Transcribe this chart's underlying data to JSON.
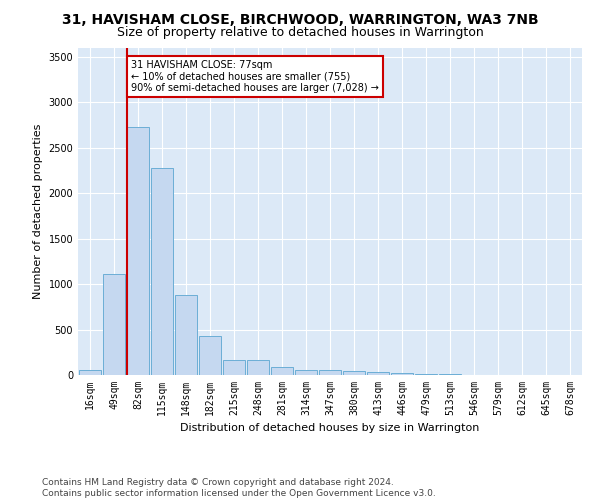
{
  "title": "31, HAVISHAM CLOSE, BIRCHWOOD, WARRINGTON, WA3 7NB",
  "subtitle": "Size of property relative to detached houses in Warrington",
  "xlabel": "Distribution of detached houses by size in Warrington",
  "ylabel": "Number of detached properties",
  "categories": [
    "16sqm",
    "49sqm",
    "82sqm",
    "115sqm",
    "148sqm",
    "182sqm",
    "215sqm",
    "248sqm",
    "281sqm",
    "314sqm",
    "347sqm",
    "380sqm",
    "413sqm",
    "446sqm",
    "479sqm",
    "513sqm",
    "546sqm",
    "579sqm",
    "612sqm",
    "645sqm",
    "678sqm"
  ],
  "values": [
    55,
    1110,
    2730,
    2280,
    880,
    430,
    170,
    160,
    90,
    60,
    50,
    40,
    28,
    18,
    12,
    8,
    5,
    3,
    2,
    1,
    1
  ],
  "bar_color": "#c5d8f0",
  "bar_edge_color": "#6baed6",
  "annotation_text_line1": "31 HAVISHAM CLOSE: 77sqm",
  "annotation_text_line2": "← 10% of detached houses are smaller (755)",
  "annotation_text_line3": "90% of semi-detached houses are larger (7,028) →",
  "red_line_color": "#cc0000",
  "annotation_box_edge_color": "#cc0000",
  "footer_line1": "Contains HM Land Registry data © Crown copyright and database right 2024.",
  "footer_line2": "Contains public sector information licensed under the Open Government Licence v3.0.",
  "ylim": [
    0,
    3600
  ],
  "yticks": [
    0,
    500,
    1000,
    1500,
    2000,
    2500,
    3000,
    3500
  ],
  "plot_bg_color": "#dce9f7",
  "grid_color": "#ffffff",
  "title_fontsize": 10,
  "subtitle_fontsize": 9,
  "axis_fontsize": 8,
  "tick_fontsize": 7,
  "footer_fontsize": 6.5
}
